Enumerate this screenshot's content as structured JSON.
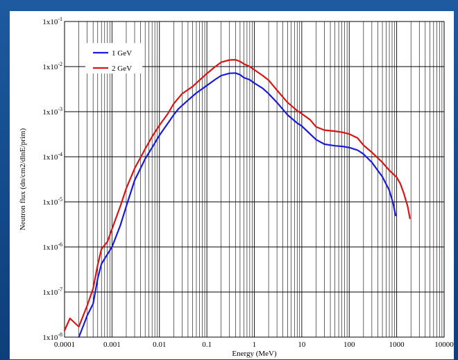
{
  "chart_data": {
    "type": "line",
    "title": "",
    "xlabel": "Energy (MeV)",
    "ylabel": "Neutron flux (dn/cm2/dlnE/prim)",
    "xscale": "log",
    "yscale": "log",
    "xlim": [
      0.0001,
      10000
    ],
    "ylim": [
      1e-08,
      0.1
    ],
    "grid": true,
    "legend_position": "top-left",
    "x_ticks": [
      {
        "value": 0.0001,
        "label": "0.0001"
      },
      {
        "value": 0.001,
        "label": "0.001"
      },
      {
        "value": 0.01,
        "label": "0.01"
      },
      {
        "value": 0.1,
        "label": "0.1"
      },
      {
        "value": 1,
        "label": "1"
      },
      {
        "value": 10,
        "label": "10"
      },
      {
        "value": 100,
        "label": "100"
      },
      {
        "value": 1000,
        "label": "1000"
      },
      {
        "value": 10000,
        "label": "10000"
      }
    ],
    "y_ticks": [
      {
        "value": 1e-08,
        "base": "1x10",
        "exp": "-8"
      },
      {
        "value": 1e-07,
        "base": "1x10",
        "exp": "-7"
      },
      {
        "value": 1e-06,
        "base": "1x10",
        "exp": "-6"
      },
      {
        "value": 1e-05,
        "base": "1x10",
        "exp": "-5"
      },
      {
        "value": 0.0001,
        "base": "1x10",
        "exp": "-4"
      },
      {
        "value": 0.001,
        "base": "1x10",
        "exp": "-3"
      },
      {
        "value": 0.01,
        "base": "1x10",
        "exp": "-2"
      },
      {
        "value": 0.1,
        "base": "1x10",
        "exp": "-1"
      }
    ],
    "series": [
      {
        "name": "1 GeV",
        "color": "#1a1adb",
        "points": [
          [
            0.0002,
            1e-08
          ],
          [
            0.00025,
            1.8e-08
          ],
          [
            0.0003,
            3e-08
          ],
          [
            0.0004,
            5.5e-08
          ],
          [
            0.0005,
            2e-07
          ],
          [
            0.0006,
            4.2e-07
          ],
          [
            0.0007,
            5.5e-07
          ],
          [
            0.001,
            1e-06
          ],
          [
            0.0015,
            3e-06
          ],
          [
            0.002,
            8e-06
          ],
          [
            0.003,
            3e-05
          ],
          [
            0.005,
            9e-05
          ],
          [
            0.007,
            0.00016
          ],
          [
            0.01,
            0.0003
          ],
          [
            0.015,
            0.00055
          ],
          [
            0.02,
            0.00085
          ],
          [
            0.025,
            0.00115
          ],
          [
            0.04,
            0.0018
          ],
          [
            0.06,
            0.0026
          ],
          [
            0.1,
            0.0038
          ],
          [
            0.15,
            0.0052
          ],
          [
            0.2,
            0.0063
          ],
          [
            0.3,
            0.0071
          ],
          [
            0.4,
            0.0072
          ],
          [
            0.5,
            0.0066
          ],
          [
            0.6,
            0.0057
          ],
          [
            0.8,
            0.0051
          ],
          [
            1.0,
            0.0043
          ],
          [
            1.5,
            0.0033
          ],
          [
            2.0,
            0.0025
          ],
          [
            3.0,
            0.0016
          ],
          [
            5.0,
            0.00085
          ],
          [
            8.0,
            0.00056
          ],
          [
            10,
            0.00048
          ],
          [
            15,
            0.00032
          ],
          [
            20,
            0.00024
          ],
          [
            30,
            0.00019
          ],
          [
            50,
            0.000175
          ],
          [
            70,
            0.00017
          ],
          [
            100,
            0.00016
          ],
          [
            150,
            0.00014
          ],
          [
            200,
            0.000115
          ],
          [
            300,
            7.5e-05
          ],
          [
            500,
            3.6e-05
          ],
          [
            700,
            1.8e-05
          ],
          [
            850,
            9e-06
          ],
          [
            950,
            5e-06
          ]
        ]
      },
      {
        "name": "2 GeV",
        "color": "#d81414",
        "points": [
          [
            0.0001,
            1.4e-08
          ],
          [
            0.00013,
            2.6e-08
          ],
          [
            0.0002,
            1.7e-08
          ],
          [
            0.0003,
            5e-08
          ],
          [
            0.0004,
            1.2e-07
          ],
          [
            0.0005,
            4e-07
          ],
          [
            0.0006,
            9e-07
          ],
          [
            0.0008,
            1.3e-06
          ],
          [
            0.001,
            2.5e-06
          ],
          [
            0.0015,
            8e-06
          ],
          [
            0.002,
            2e-05
          ],
          [
            0.003,
            5.5e-05
          ],
          [
            0.005,
            0.00015
          ],
          [
            0.007,
            0.00028
          ],
          [
            0.01,
            0.0005
          ],
          [
            0.015,
            0.0009
          ],
          [
            0.02,
            0.0015
          ],
          [
            0.03,
            0.0025
          ],
          [
            0.05,
            0.0036
          ],
          [
            0.07,
            0.005
          ],
          [
            0.1,
            0.007
          ],
          [
            0.15,
            0.01
          ],
          [
            0.2,
            0.0125
          ],
          [
            0.3,
            0.014
          ],
          [
            0.4,
            0.0142
          ],
          [
            0.5,
            0.013
          ],
          [
            0.6,
            0.0115
          ],
          [
            0.8,
            0.01
          ],
          [
            1.0,
            0.0085
          ],
          [
            1.5,
            0.0063
          ],
          [
            2.0,
            0.005
          ],
          [
            3.0,
            0.003
          ],
          [
            5.0,
            0.0016
          ],
          [
            8.0,
            0.00105
          ],
          [
            10,
            0.0009
          ],
          [
            15,
            0.00066
          ],
          [
            20,
            0.00046
          ],
          [
            30,
            0.00039
          ],
          [
            50,
            0.00037
          ],
          [
            70,
            0.00035
          ],
          [
            100,
            0.00032
          ],
          [
            150,
            0.00026
          ],
          [
            200,
            0.00018
          ],
          [
            300,
            0.000125
          ],
          [
            500,
            7.5e-05
          ],
          [
            700,
            5e-05
          ],
          [
            1000,
            3.5e-05
          ],
          [
            1200,
            2.5e-05
          ],
          [
            1400,
            1.6e-05
          ],
          [
            1700,
            8e-06
          ],
          [
            1900,
            4.3e-06
          ]
        ]
      }
    ]
  }
}
